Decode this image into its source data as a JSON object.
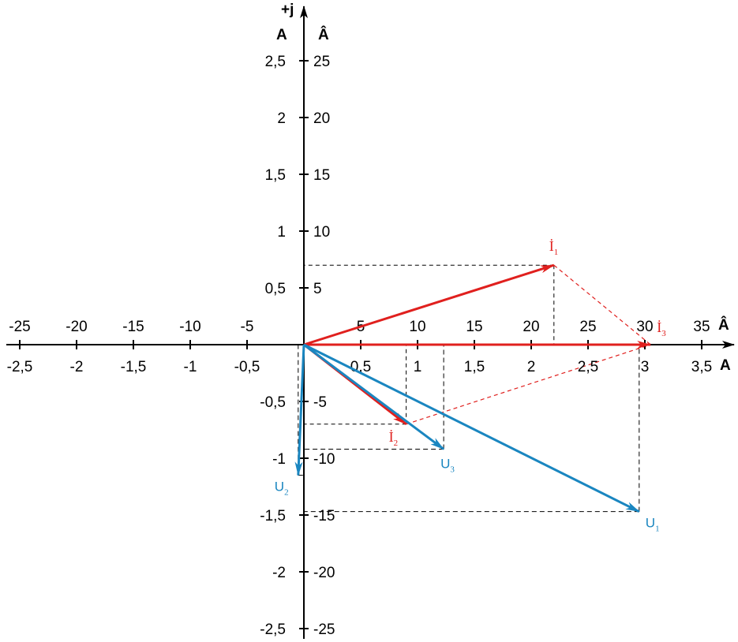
{
  "axis_titles": {
    "imag": "+j",
    "left_unit": "A",
    "right_unit": "Â",
    "real_top_unit": "Â",
    "real_bottom_unit": "A"
  },
  "x_ticks": [
    {
      "value": -2.5,
      "top": "-25",
      "bottom": "-2,5"
    },
    {
      "value": -2.0,
      "top": "-20",
      "bottom": "-2"
    },
    {
      "value": -1.5,
      "top": "-15",
      "bottom": "-1,5"
    },
    {
      "value": -1.0,
      "top": "-10",
      "bottom": "-1"
    },
    {
      "value": -0.5,
      "top": "-5",
      "bottom": "-0,5"
    },
    {
      "value": 0.5,
      "top": "5",
      "bottom": "0,5"
    },
    {
      "value": 1.0,
      "top": "10",
      "bottom": "1"
    },
    {
      "value": 1.5,
      "top": "15",
      "bottom": "1,5"
    },
    {
      "value": 2.0,
      "top": "20",
      "bottom": "2"
    },
    {
      "value": 2.5,
      "top": "25",
      "bottom": "2,5"
    },
    {
      "value": 3.0,
      "top": "30",
      "bottom": "3"
    },
    {
      "value": 3.5,
      "top": "35",
      "bottom": "3,5"
    }
  ],
  "y_ticks": [
    {
      "value": 2.5,
      "left": "2,5",
      "right": "25"
    },
    {
      "value": 2.0,
      "left": "2",
      "right": "20"
    },
    {
      "value": 1.5,
      "left": "1,5",
      "right": "15"
    },
    {
      "value": 1.0,
      "left": "1",
      "right": "10"
    },
    {
      "value": 0.5,
      "left": "0,5",
      "right": "5"
    },
    {
      "value": -0.5,
      "left": "-0,5",
      "right": "-5"
    },
    {
      "value": -1.0,
      "left": "-1",
      "right": "-10"
    },
    {
      "value": -1.5,
      "left": "-1,5",
      "right": "-15"
    },
    {
      "value": -2.0,
      "left": "-2",
      "right": "-20"
    },
    {
      "value": -2.5,
      "left": "-2,5",
      "right": "-25"
    }
  ],
  "colors": {
    "current": "#e0201e",
    "voltage": "#1a86c0",
    "axis": "#000000"
  },
  "vectors": [
    {
      "id": "I1",
      "kind": "current",
      "letter": "İ",
      "sub": "1",
      "re": 2.2,
      "im": 0.7
    },
    {
      "id": "I2",
      "kind": "current",
      "letter": "İ",
      "sub": "2",
      "re": 0.9,
      "im": -0.7
    },
    {
      "id": "I3",
      "kind": "current",
      "letter": "İ",
      "sub": "3",
      "re": 3.05,
      "im": 0.0
    },
    {
      "id": "U1",
      "kind": "voltage",
      "letter": "U",
      "sub": "1",
      "re": 2.95,
      "im": -1.47
    },
    {
      "id": "U2",
      "kind": "voltage",
      "letter": "U",
      "sub": "2",
      "re": -0.05,
      "im": -1.15
    },
    {
      "id": "U3",
      "kind": "voltage",
      "letter": "U",
      "sub": "3",
      "re": 1.23,
      "im": -0.92
    }
  ]
}
